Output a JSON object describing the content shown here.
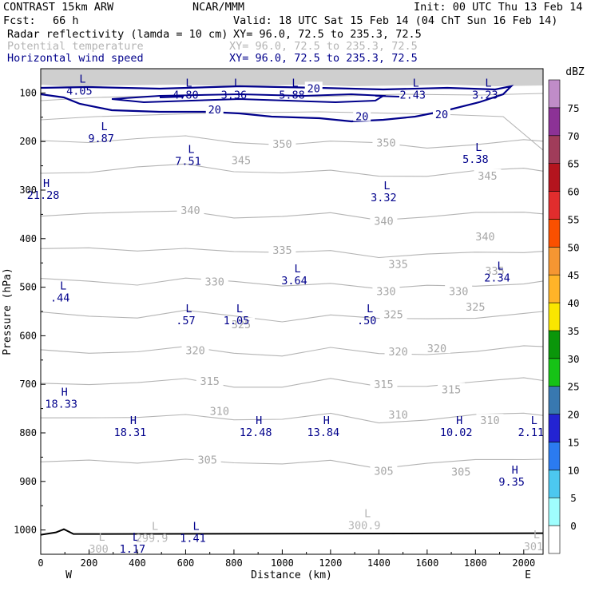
{
  "header": {
    "model": "CONTRAST 15km ARW",
    "agency": "NCAR/MMM",
    "init": "Init: 00 UTC Thu 13 Feb 14",
    "fcst_label": "Fcst:",
    "fcst_value": "66 h",
    "valid": "Valid: 18 UTC Sat 15 Feb 14 (04 ChT Sun 16 Feb 14)"
  },
  "fields": [
    {
      "name": "Radar reflectivity (lamda = 10 cm)",
      "xy": "XY=  96.0, 72.5 to 235.3, 72.5",
      "color": "#000000"
    },
    {
      "name": "Potential temperature",
      "xy": "XY=  96.0, 72.5 to 235.3, 72.5",
      "color": "#b4b4b4"
    },
    {
      "name": "Horizontal wind speed",
      "xy": "XY=  96.0, 72.5 to 235.3, 72.5",
      "color": "#00008b"
    }
  ],
  "chart_data": {
    "type": "cross-section contour",
    "xlabel": "Distance (km)",
    "ylabel": "Pressure (hPa)",
    "xlim": [
      0,
      2080
    ],
    "ylim": [
      1050,
      50
    ],
    "x_ticks": [
      0,
      200,
      400,
      600,
      800,
      1000,
      1200,
      1400,
      1600,
      1800,
      2000
    ],
    "y_ticks": [
      100,
      200,
      300,
      400,
      500,
      600,
      700,
      800,
      900,
      1000
    ],
    "x_end_labels": {
      "left": "W",
      "right": "E"
    },
    "colorbar": {
      "unit": "dBZ",
      "levels": [
        0,
        5,
        10,
        15,
        20,
        25,
        30,
        35,
        40,
        45,
        50,
        55,
        60,
        65,
        70,
        75
      ],
      "colors": [
        "#ffffff",
        "#9ffefe",
        "#4cc8f0",
        "#2b7bf0",
        "#2323d2",
        "#3878b0",
        "#16c316",
        "#0a960a",
        "#fae600",
        "#ffb428",
        "#f59632",
        "#fa5000",
        "#e12d2d",
        "#b4141e",
        "#a03c5a",
        "#8c3296",
        "#c08cc8"
      ]
    },
    "theta_contours": [
      {
        "label": "350",
        "p": [
          198,
          198,
          195,
          192,
          200,
          204,
          202,
          205,
          210,
          205,
          200
        ],
        "label_pos": [
          [
            1000,
            205
          ],
          [
            1430,
            202
          ]
        ]
      },
      {
        "label": "345",
        "p": [
          262,
          262,
          256,
          247,
          258,
          265,
          263,
          270,
          268,
          262,
          258
        ],
        "label_pos": [
          [
            830,
            238
          ],
          [
            1850,
            270
          ]
        ]
      },
      {
        "label": "340",
        "p": [
          350,
          350,
          348,
          340,
          355,
          358,
          348,
          358,
          355,
          350,
          345
        ],
        "label_pos": [
          [
            620,
            341
          ],
          [
            1420,
            363
          ],
          [
            1840,
            395
          ]
        ]
      },
      {
        "label": "335",
        "p": [
          420,
          423,
          425,
          416,
          428,
          432,
          422,
          436,
          435,
          430,
          425
        ],
        "label_pos": [
          [
            1000,
            423
          ],
          [
            1480,
            452
          ],
          [
            1880,
            466
          ]
        ]
      },
      {
        "label": "330",
        "p": [
          485,
          490,
          492,
          480,
          492,
          498,
          488,
          504,
          500,
          496,
          490
        ],
        "label_pos": [
          [
            720,
            488
          ],
          [
            1430,
            508
          ],
          [
            1730,
            508
          ]
        ]
      },
      {
        "label": "325",
        "p": [
          555,
          558,
          560,
          550,
          562,
          568,
          555,
          568,
          566,
          560,
          554
        ],
        "label_pos": [
          [
            830,
            576
          ],
          [
            1460,
            556
          ],
          [
            1800,
            540
          ]
        ]
      },
      {
        "label": "320",
        "p": [
          630,
          632,
          633,
          626,
          635,
          638,
          626,
          640,
          636,
          630,
          624
        ],
        "label_pos": [
          [
            640,
            630
          ],
          [
            1480,
            632
          ],
          [
            1640,
            626
          ]
        ]
      },
      {
        "label": "315",
        "p": [
          695,
          698,
          700,
          690,
          702,
          705,
          692,
          704,
          700,
          696,
          690
        ],
        "label_pos": [
          [
            700,
            693
          ],
          [
            1420,
            700
          ],
          [
            1700,
            710
          ]
        ]
      },
      {
        "label": "310",
        "p": [
          765,
          770,
          772,
          760,
          770,
          775,
          762,
          776,
          772,
          766,
          760
        ],
        "label_pos": [
          [
            740,
            755
          ],
          [
            1480,
            762
          ],
          [
            1860,
            774
          ]
        ]
      },
      {
        "label": "305",
        "p": [
          858,
          860,
          863,
          850,
          862,
          868,
          855,
          870,
          865,
          858,
          852
        ],
        "label_pos": [
          [
            690,
            855
          ],
          [
            1420,
            878
          ],
          [
            1740,
            880
          ]
        ]
      }
    ],
    "wind_speed": {
      "contour_label": "20",
      "label_pos": [
        [
          1130,
          90
        ],
        [
          720,
          134
        ],
        [
          1330,
          148
        ],
        [
          1660,
          144
        ]
      ]
    },
    "surface": {
      "p": 1005
    },
    "extrema": [
      {
        "type": "L",
        "value": "4.05",
        "x": 160,
        "p": 82,
        "color": "#00008b"
      },
      {
        "type": "L",
        "value": "4.80",
        "x": 600,
        "p": 90,
        "color": "#00008b"
      },
      {
        "type": "L",
        "value": "3.36",
        "x": 800,
        "p": 90,
        "color": "#00008b"
      },
      {
        "type": "L",
        "value": "5.88",
        "x": 1040,
        "p": 90,
        "color": "#00008b"
      },
      {
        "type": "L",
        "value": "2.43",
        "x": 1540,
        "p": 90,
        "color": "#00008b"
      },
      {
        "type": "L",
        "value": "3.23",
        "x": 1840,
        "p": 90,
        "color": "#00008b"
      },
      {
        "type": "L",
        "value": "9.87",
        "x": 250,
        "p": 180,
        "color": "#00008b"
      },
      {
        "type": "L",
        "value": "7.51",
        "x": 610,
        "p": 227,
        "color": "#00008b"
      },
      {
        "type": "L",
        "value": "5.38",
        "x": 1800,
        "p": 223,
        "color": "#00008b"
      },
      {
        "type": "H",
        "value": "21.28",
        "x": 10,
        "p": 297,
        "color": "#00008b"
      },
      {
        "type": "L",
        "value": "3.32",
        "x": 1420,
        "p": 302,
        "color": "#00008b"
      },
      {
        "type": "L",
        "value": "3.64",
        "x": 1050,
        "p": 473,
        "color": "#00008b"
      },
      {
        "type": "L",
        "value": "2.34",
        "x": 1890,
        "p": 467,
        "color": "#00008b"
      },
      {
        "type": "L",
        "value": ".44",
        "x": 80,
        "p": 508,
        "color": "#00008b"
      },
      {
        "type": "L",
        "value": ".57",
        "x": 600,
        "p": 555,
        "color": "#00008b"
      },
      {
        "type": "L",
        "value": "1.05",
        "x": 810,
        "p": 555,
        "color": "#00008b"
      },
      {
        "type": "L",
        "value": ".50",
        "x": 1350,
        "p": 555,
        "color": "#00008b"
      },
      {
        "type": "H",
        "value": "18.33",
        "x": 85,
        "p": 727,
        "color": "#00008b"
      },
      {
        "type": "H",
        "value": "18.31",
        "x": 370,
        "p": 785,
        "color": "#00008b"
      },
      {
        "type": "H",
        "value": "12.48",
        "x": 890,
        "p": 785,
        "color": "#00008b"
      },
      {
        "type": "H",
        "value": "13.84",
        "x": 1170,
        "p": 785,
        "color": "#00008b"
      },
      {
        "type": "H",
        "value": "10.02",
        "x": 1720,
        "p": 785,
        "color": "#00008b"
      },
      {
        "type": "L",
        "value": "2.11",
        "x": 2030,
        "p": 785,
        "color": "#00008b"
      },
      {
        "type": "H",
        "value": "9.35",
        "x": 1950,
        "p": 887,
        "color": "#00008b"
      },
      {
        "type": "L",
        "value": "1.41",
        "x": 630,
        "p": 1003,
        "color": "#00008b"
      },
      {
        "type": "L",
        "value": "1.17",
        "x": 380,
        "p": 1025,
        "color": "#00008b"
      },
      {
        "type": "L",
        "value": "299.9",
        "x": 460,
        "p": 1003,
        "color": "#b4b4b4"
      },
      {
        "type": "L",
        "value": "300",
        "x": 240,
        "p": 1025,
        "color": "#b4b4b4"
      },
      {
        "type": "L",
        "value": "300.9",
        "x": 1340,
        "p": 977,
        "color": "#b4b4b4"
      },
      {
        "type": "L",
        "value": "301",
        "x": 2040,
        "p": 1020,
        "color": "#b4b4b4"
      }
    ]
  }
}
